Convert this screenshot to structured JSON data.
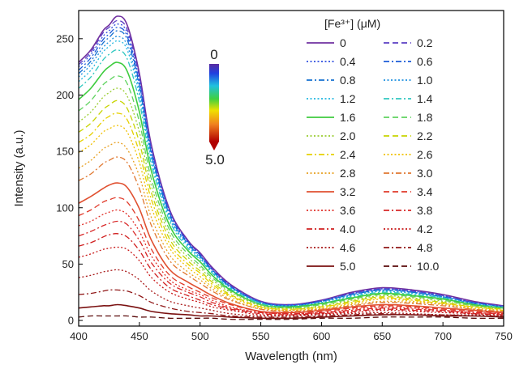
{
  "chart_data": {
    "type": "line",
    "xlabel": "Wavelength (nm)",
    "ylabel": "Intensity (a.u.)",
    "xlim": [
      400,
      750
    ],
    "ylim": [
      -5,
      275
    ],
    "xticks": [
      400,
      450,
      500,
      550,
      600,
      650,
      700,
      750
    ],
    "yticks": [
      0,
      50,
      100,
      150,
      200,
      250
    ],
    "legend_title": "[Fe³⁺] (μM)",
    "legend_position": "top-right",
    "colorbar": {
      "top_label": "0",
      "bottom_label": "5.0"
    },
    "x_samples": [
      400,
      410,
      420,
      425,
      432,
      440,
      450,
      460,
      475,
      490,
      500,
      510,
      525,
      550,
      575,
      600,
      625,
      650,
      675,
      700,
      725,
      750
    ],
    "series": [
      {
        "name": "0",
        "color": "#7030a0",
        "dash": "solid",
        "values": [
          229,
          240,
          257,
          262,
          270,
          262,
          219,
          155,
          98,
          71,
          60,
          47,
          32,
          17,
          14,
          18,
          25,
          29,
          27,
          23,
          17,
          13
        ]
      },
      {
        "name": "0.2",
        "color": "#5b3fc4",
        "dash": "dash",
        "values": [
          227,
          238,
          255,
          260,
          266,
          258,
          216,
          153,
          97,
          70,
          59,
          46,
          31,
          17,
          14,
          18,
          24,
          28,
          26,
          22,
          16,
          13
        ]
      },
      {
        "name": "0.4",
        "color": "#2f4fe0",
        "dash": "dot",
        "values": [
          225,
          236,
          252,
          257,
          263,
          255,
          213,
          151,
          96,
          70,
          58,
          45,
          31,
          16,
          14,
          17,
          24,
          28,
          26,
          22,
          16,
          12
        ]
      },
      {
        "name": "0.6",
        "color": "#1a5bd8",
        "dash": "dashdot",
        "values": [
          222,
          233,
          249,
          254,
          260,
          252,
          210,
          149,
          95,
          69,
          58,
          45,
          30,
          16,
          13,
          17,
          23,
          27,
          25,
          21,
          16,
          12
        ]
      },
      {
        "name": "0.8",
        "color": "#1470d0",
        "dash": "dashdot",
        "values": [
          219,
          230,
          246,
          251,
          257,
          249,
          208,
          147,
          93,
          68,
          57,
          44,
          30,
          16,
          13,
          17,
          23,
          27,
          25,
          21,
          15,
          12
        ]
      },
      {
        "name": "1.0",
        "color": "#1e90e0",
        "dash": "dot",
        "values": [
          216,
          227,
          242,
          247,
          252,
          244,
          204,
          145,
          92,
          67,
          56,
          43,
          29,
          16,
          13,
          16,
          22,
          26,
          24,
          21,
          15,
          12
        ]
      },
      {
        "name": "1.2",
        "color": "#22b8e0",
        "dash": "dot",
        "values": [
          212,
          222,
          238,
          243,
          248,
          240,
          200,
          142,
          90,
          66,
          55,
          43,
          29,
          15,
          13,
          16,
          22,
          26,
          24,
          20,
          15,
          12
        ]
      },
      {
        "name": "1.4",
        "color": "#30c8c0",
        "dash": "dashdot",
        "values": [
          206,
          216,
          231,
          236,
          240,
          232,
          194,
          138,
          88,
          64,
          54,
          42,
          28,
          15,
          12,
          15,
          21,
          25,
          23,
          20,
          14,
          11
        ]
      },
      {
        "name": "1.6",
        "color": "#3ecc3e",
        "dash": "solid",
        "values": [
          196,
          206,
          220,
          225,
          229,
          221,
          185,
          132,
          84,
          62,
          52,
          40,
          27,
          14,
          12,
          15,
          20,
          24,
          22,
          19,
          14,
          11
        ]
      },
      {
        "name": "1.8",
        "color": "#5fd35f",
        "dash": "dash",
        "values": [
          186,
          195,
          209,
          213,
          217,
          210,
          176,
          125,
          80,
          59,
          49,
          38,
          26,
          14,
          11,
          14,
          19,
          23,
          21,
          18,
          13,
          11
        ]
      },
      {
        "name": "2.0",
        "color": "#9acd32",
        "dash": "dot",
        "values": [
          176,
          185,
          198,
          202,
          206,
          199,
          167,
          119,
          76,
          56,
          47,
          36,
          25,
          13,
          11,
          13,
          18,
          22,
          20,
          17,
          13,
          10
        ]
      },
      {
        "name": "2.2",
        "color": "#c8d400",
        "dash": "dash",
        "values": [
          167,
          175,
          187,
          191,
          195,
          188,
          158,
          113,
          72,
          53,
          44,
          34,
          23,
          12,
          10,
          12,
          17,
          21,
          19,
          16,
          12,
          10
        ]
      },
      {
        "name": "2.4",
        "color": "#e6d000",
        "dash": "dashdot",
        "values": [
          158,
          165,
          177,
          181,
          184,
          178,
          149,
          107,
          68,
          50,
          42,
          32,
          22,
          12,
          10,
          12,
          16,
          20,
          18,
          15,
          12,
          9
        ]
      },
      {
        "name": "2.6",
        "color": "#f0c000",
        "dash": "dot",
        "values": [
          149,
          156,
          167,
          170,
          173,
          167,
          140,
          100,
          64,
          47,
          39,
          30,
          21,
          11,
          9,
          11,
          15,
          19,
          17,
          15,
          11,
          9
        ]
      },
      {
        "name": "2.8",
        "color": "#e8a020",
        "dash": "dot",
        "values": [
          135,
          142,
          152,
          155,
          158,
          152,
          128,
          91,
          58,
          43,
          36,
          28,
          19,
          10,
          9,
          10,
          14,
          17,
          16,
          14,
          10,
          8
        ]
      },
      {
        "name": "3.0",
        "color": "#e07830",
        "dash": "dashdot",
        "values": [
          124,
          130,
          139,
          142,
          145,
          140,
          117,
          84,
          53,
          40,
          33,
          26,
          18,
          10,
          8,
          10,
          13,
          16,
          15,
          13,
          10,
          8
        ]
      },
      {
        "name": "3.2",
        "color": "#e05030",
        "dash": "solid",
        "values": [
          104,
          110,
          117,
          120,
          122,
          118,
          99,
          71,
          45,
          34,
          28,
          22,
          15,
          8,
          7,
          9,
          12,
          14,
          13,
          11,
          9,
          7
        ]
      },
      {
        "name": "3.4",
        "color": "#e03a2a",
        "dash": "dash",
        "values": [
          93,
          98,
          105,
          107,
          109,
          105,
          88,
          63,
          40,
          30,
          25,
          20,
          14,
          8,
          7,
          8,
          11,
          13,
          12,
          10,
          8,
          7
        ]
      },
      {
        "name": "3.6",
        "color": "#e0302a",
        "dash": "dot",
        "values": [
          84,
          88,
          94,
          96,
          98,
          94,
          79,
          57,
          36,
          27,
          23,
          18,
          12,
          7,
          6,
          7,
          10,
          12,
          11,
          9,
          7,
          6
        ]
      },
      {
        "name": "3.8",
        "color": "#d82828",
        "dash": "dashdot",
        "values": [
          75,
          79,
          84,
          86,
          88,
          85,
          71,
          51,
          33,
          25,
          21,
          16,
          11,
          7,
          6,
          7,
          9,
          11,
          10,
          9,
          7,
          6
        ]
      },
      {
        "name": "4.0",
        "color": "#d02020",
        "dash": "dashdot",
        "values": [
          66,
          69,
          74,
          76,
          77,
          74,
          62,
          45,
          29,
          22,
          18,
          14,
          10,
          6,
          5,
          6,
          8,
          10,
          9,
          8,
          6,
          5
        ]
      },
      {
        "name": "4.2",
        "color": "#c81818",
        "dash": "dot",
        "values": [
          56,
          59,
          63,
          64,
          65,
          63,
          53,
          38,
          25,
          19,
          16,
          12,
          9,
          5,
          5,
          6,
          7,
          9,
          8,
          7,
          6,
          5
        ]
      },
      {
        "name": "4.6",
        "color": "#a81818",
        "dash": "dot",
        "values": [
          38,
          40,
          43,
          44,
          45,
          43,
          36,
          26,
          17,
          13,
          11,
          9,
          6,
          4,
          4,
          5,
          6,
          7,
          6,
          5,
          5,
          4
        ]
      },
      {
        "name": "4.8",
        "color": "#901818",
        "dash": "dashdot",
        "values": [
          23,
          24,
          26,
          27,
          27,
          26,
          22,
          16,
          11,
          8,
          7,
          6,
          4,
          3,
          3,
          4,
          5,
          6,
          5,
          5,
          4,
          4
        ]
      },
      {
        "name": "5.0",
        "color": "#7a1010",
        "dash": "solid",
        "values": [
          11,
          12,
          13,
          13,
          14,
          13,
          11,
          8,
          6,
          5,
          4,
          4,
          3,
          2,
          2,
          3,
          4,
          5,
          5,
          4,
          4,
          3
        ]
      },
      {
        "name": "10.0",
        "color": "#5a0a0a",
        "dash": "dash",
        "values": [
          3,
          4,
          4,
          4,
          4,
          4,
          3,
          3,
          2,
          2,
          2,
          2,
          1,
          1,
          1,
          2,
          2,
          3,
          3,
          3,
          2,
          2
        ]
      }
    ]
  }
}
